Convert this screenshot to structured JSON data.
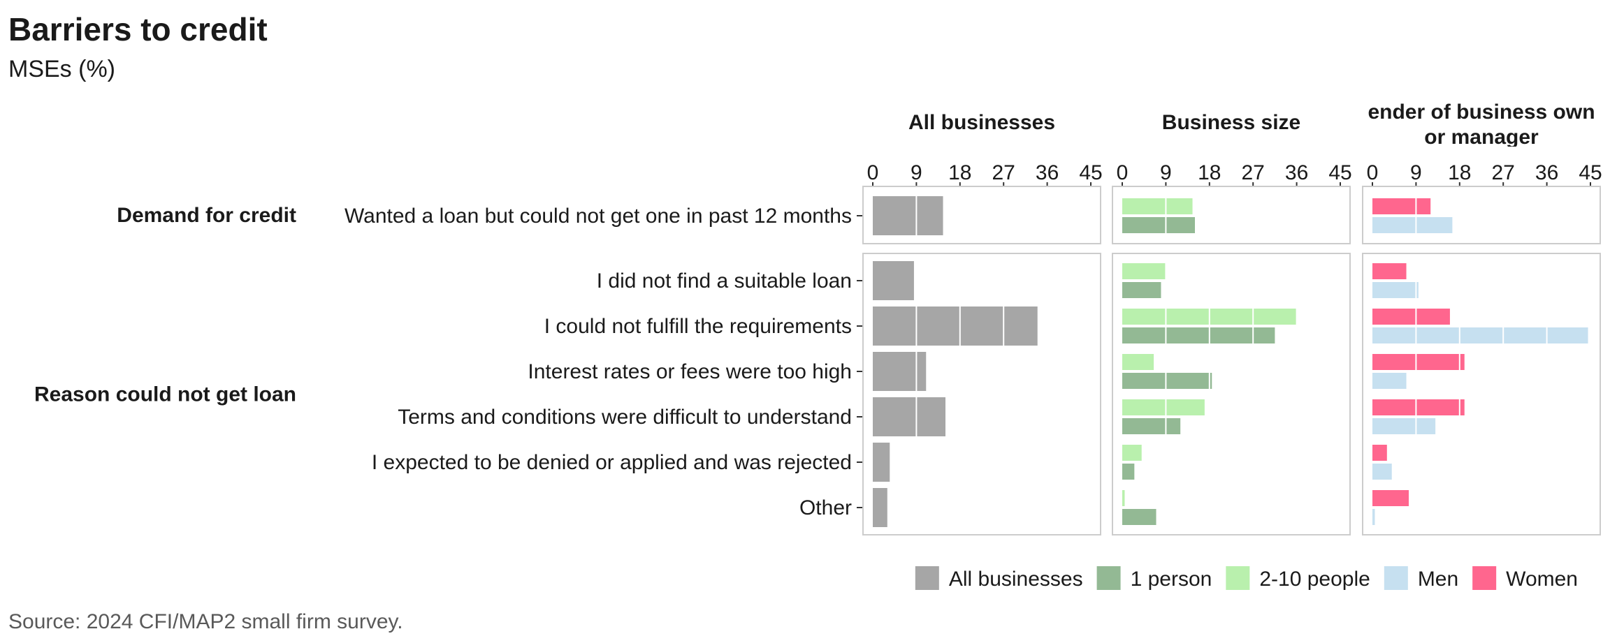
{
  "title": "Barriers to credit",
  "subtitle": "MSEs (%)",
  "source": "Source: 2024 CFI/MAP2 small firm survey.",
  "colors": {
    "all": "#A6A6A6",
    "one_person": "#93B994",
    "two_to_ten": "#B9F0AD",
    "men": "#C6E0F0",
    "women": "#FF668E",
    "panel_border": "#CCCCCC",
    "grid": "#FFFFFF"
  },
  "chart_data": {
    "type": "bar",
    "orientation": "horizontal",
    "xlim": [
      0,
      45
    ],
    "x_ticks": [
      "0",
      "9",
      "18",
      "27",
      "36",
      "45"
    ],
    "x_tick_values": [
      0,
      9,
      18,
      27,
      36,
      45
    ],
    "facets": [
      "All businesses",
      "Business size",
      "ender of business own\nor manager"
    ],
    "groups": [
      {
        "name": "Demand for credit",
        "categories": [
          "Wanted a loan but could not get one in past 12 months"
        ]
      },
      {
        "name": "Reason could not get loan",
        "categories": [
          "I did not find a suitable loan",
          "I could not fulfill the requirements",
          "Interest rates or fees were too high",
          "Terms and conditions were difficult to understand",
          "I expected to be denied or applied and was rejected",
          "Other"
        ]
      }
    ],
    "series": [
      {
        "name": "All businesses",
        "facet": 0,
        "color_key": "all",
        "values": [
          14.5,
          8.5,
          34,
          11,
          15,
          3.5,
          3
        ]
      },
      {
        "name": "2-10 people",
        "facet": 1,
        "color_key": "two_to_ten",
        "values": [
          14.5,
          9,
          36,
          6.5,
          17,
          4,
          0.5
        ]
      },
      {
        "name": "1 person",
        "facet": 1,
        "color_key": "one_person",
        "values": [
          15,
          8,
          31.5,
          18.5,
          12,
          2.5,
          7
        ]
      },
      {
        "name": "Women",
        "facet": 2,
        "color_key": "women",
        "values": [
          12,
          7,
          16,
          19,
          19,
          3,
          7.5
        ]
      },
      {
        "name": "Men",
        "facet": 2,
        "color_key": "men",
        "values": [
          16.5,
          9.5,
          44.5,
          7,
          13,
          4,
          0.5
        ]
      }
    ],
    "legend": {
      "position": "bottom-right",
      "items": [
        {
          "label": "All businesses",
          "color_key": "all"
        },
        {
          "label": "1 person",
          "color_key": "one_person"
        },
        {
          "label": "2-10 people",
          "color_key": "two_to_ten"
        },
        {
          "label": "Men",
          "color_key": "men"
        },
        {
          "label": "Women",
          "color_key": "women"
        }
      ]
    },
    "grid": "white vertical gridlines drawn over bars"
  }
}
